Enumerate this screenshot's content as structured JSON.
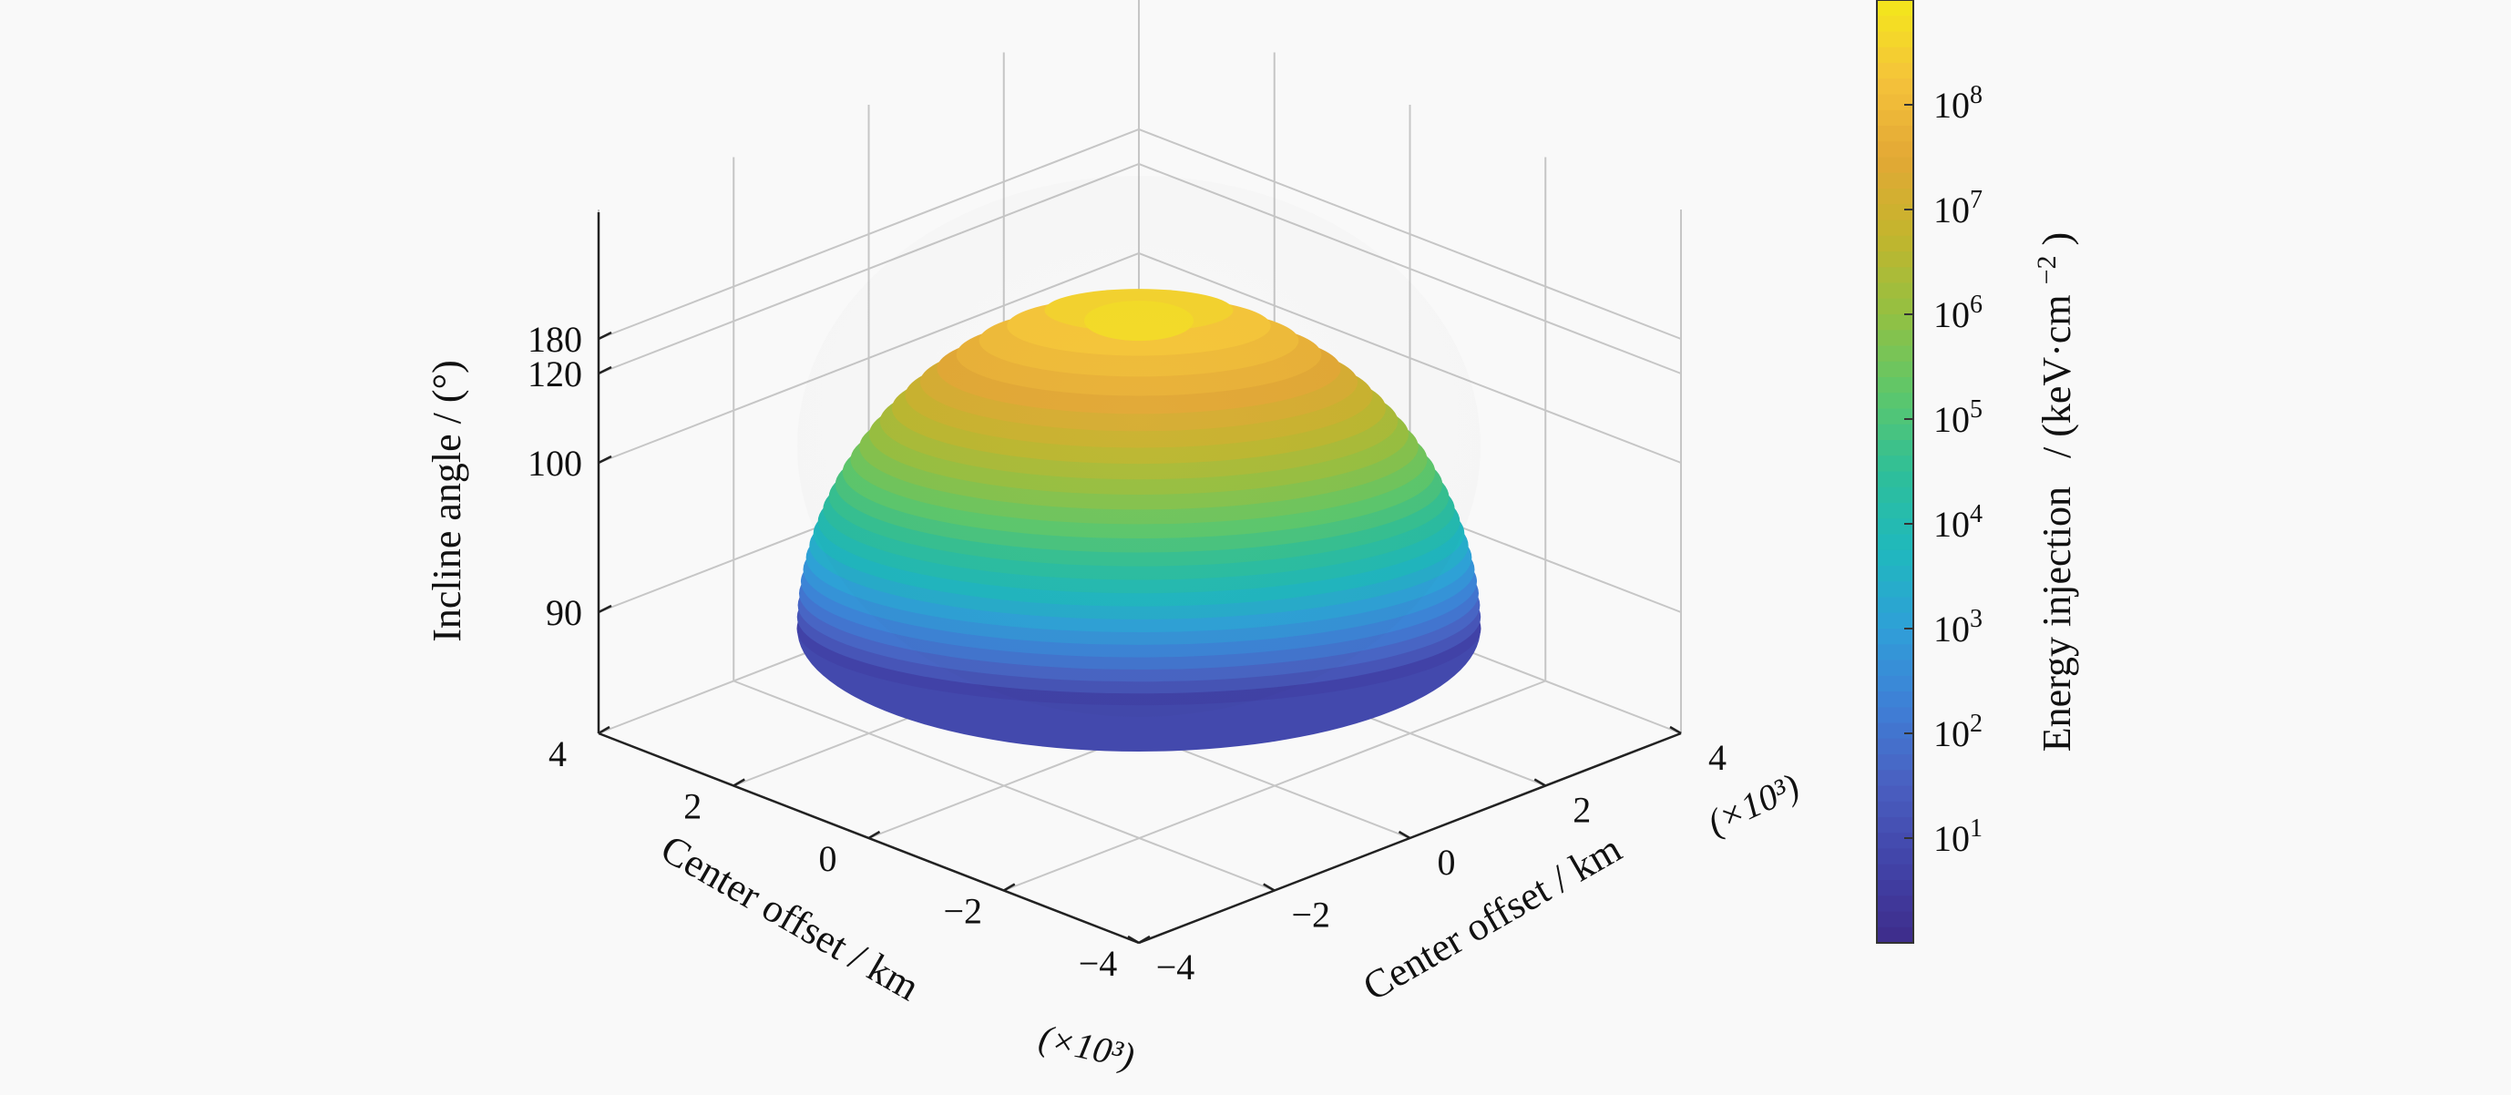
{
  "chart_data": {
    "type": "surface",
    "description_note": "",
    "x_axis": {
      "label": "Center offset / km",
      "ticks": [
        "4",
        "2",
        "0",
        "−2",
        "−4"
      ],
      "multiplier": "(×10³)",
      "range": [
        -4000,
        4000
      ]
    },
    "y_axis": {
      "label": "Center offset / km",
      "ticks": [
        "−4",
        "−2",
        "0",
        "2",
        "4"
      ],
      "multiplier": "(×10³)",
      "range": [
        -4000,
        4000
      ]
    },
    "z_axis": {
      "label": "Incline angle / (°)",
      "ticks": [
        "90",
        "100",
        "120",
        "180"
      ]
    },
    "colorbar": {
      "label_main": "Energy injection",
      "label_unit": "/ (keV·cm",
      "label_exp": "−2",
      "label_close": ")",
      "scale": "log",
      "range": [
        1,
        1000000000
      ],
      "tick_bases": [
        "10",
        "10",
        "10",
        "10",
        "10",
        "10",
        "10",
        "10"
      ],
      "tick_exps": [
        "1",
        "2",
        "3",
        "4",
        "5",
        "6",
        "7",
        "8"
      ],
      "colors": [
        "#3e2c8a",
        "#4143a8",
        "#4a5fc0",
        "#3f7fd6",
        "#2f9fd8",
        "#1fb8bd",
        "#2fbf98",
        "#5ec76a",
        "#93c042",
        "#c3b52d",
        "#e3a835",
        "#f5c33a",
        "#f3e81b"
      ]
    },
    "grid": true
  }
}
